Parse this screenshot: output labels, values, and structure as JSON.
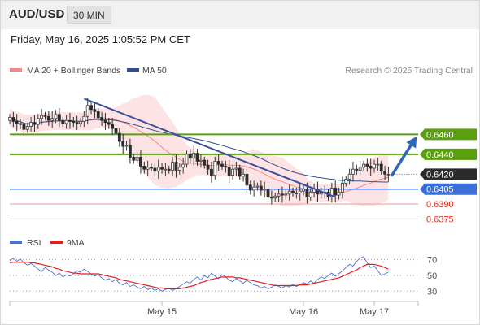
{
  "header": {
    "symbol": "AUD/USD",
    "timeframe": "30 MIN",
    "datetime": "Friday, May 16, 2025 1:05:52 PM CET"
  },
  "colors": {
    "bollinger": "#f08a8a",
    "bollinger_fill": "#fde3e3",
    "ma50": "#2f4f8f",
    "resistance": "#5aa00e",
    "pivot": "#3a6fd8",
    "support": "#f4a0a0",
    "support_text": "#e0301e",
    "trendline": "#3b4f9c",
    "arrow": "#2f64b8",
    "last_price": "#2b2b2b",
    "rsi": "#4a72d0",
    "rsi_ma": "#e0201c"
  },
  "chart_data": [
    {
      "type": "candlestick",
      "title": "AUD/USD",
      "legend": [
        {
          "name": "MA 20 + Bollinger Bands",
          "color": "#f08a8a"
        },
        {
          "name": "MA 50",
          "color": "#2f4f8f"
        }
      ],
      "source": "Research © 2025 Trading Central",
      "ylim": [
        0.6368,
        0.6515
      ],
      "x_ticks": [
        {
          "label": "May 15",
          "index": 43
        },
        {
          "label": "May 16",
          "index": 83
        },
        {
          "label": "May 17",
          "index": 103
        }
      ],
      "last_price": 0.642,
      "levels": [
        {
          "name": "resistance-2",
          "value": 0.646,
          "label": "0.6460",
          "kind": "resistance"
        },
        {
          "name": "resistance-1",
          "value": 0.644,
          "label": "0.6440",
          "kind": "resistance"
        },
        {
          "name": "pivot",
          "value": 0.6405,
          "label": "0.6405",
          "kind": "pivot"
        },
        {
          "name": "support-1",
          "value": 0.639,
          "label": "0.6390",
          "kind": "support"
        },
        {
          "name": "support-2",
          "value": 0.6375,
          "label": "0.6375",
          "kind": "support"
        }
      ],
      "trendline": {
        "from": {
          "index": 21,
          "value": 0.6496
        },
        "to": {
          "index": 92,
          "value": 0.6397
        }
      },
      "forecast_arrow": {
        "from": {
          "index": 108,
          "value": 0.6419
        },
        "to": {
          "index": 115,
          "value": 0.6458
        }
      },
      "close": [
        0.6477,
        0.6473,
        0.6471,
        0.647,
        0.6465,
        0.6468,
        0.6472,
        0.647,
        0.6476,
        0.6479,
        0.6478,
        0.6474,
        0.6476,
        0.648,
        0.6474,
        0.6471,
        0.6474,
        0.6473,
        0.6472,
        0.6471,
        0.6473,
        0.6478,
        0.6489,
        0.6485,
        0.6483,
        0.6477,
        0.6474,
        0.6472,
        0.647,
        0.6466,
        0.6461,
        0.6453,
        0.6448,
        0.6449,
        0.6437,
        0.6434,
        0.6437,
        0.6428,
        0.6425,
        0.6427,
        0.6426,
        0.6423,
        0.6427,
        0.6425,
        0.6425,
        0.6424,
        0.6432,
        0.6424,
        0.6427,
        0.643,
        0.644,
        0.6436,
        0.6441,
        0.6433,
        0.6434,
        0.6429,
        0.6425,
        0.6419,
        0.6433,
        0.643,
        0.6428,
        0.6427,
        0.6419,
        0.6425,
        0.6426,
        0.6418,
        0.642,
        0.6409,
        0.6404,
        0.6407,
        0.6408,
        0.6404,
        0.6405,
        0.6397,
        0.6396,
        0.6398,
        0.64,
        0.6399,
        0.64,
        0.6403,
        0.6401,
        0.6401,
        0.6403,
        0.6405,
        0.6397,
        0.6402,
        0.6405,
        0.64,
        0.6402,
        0.6402,
        0.6397,
        0.6406,
        0.6399,
        0.6402,
        0.6411,
        0.6415,
        0.642,
        0.6425,
        0.6424,
        0.6427,
        0.643,
        0.6428,
        0.6426,
        0.643,
        0.643,
        0.6423,
        0.642,
        0.642
      ]
    },
    {
      "type": "line",
      "title": "RSI",
      "legend": [
        {
          "name": "RSI",
          "color": "#4a72d0"
        },
        {
          "name": "9MA",
          "color": "#e0201c"
        }
      ],
      "ylim": [
        22,
        80
      ],
      "y_ticks": [
        70,
        50,
        30
      ],
      "series": [
        {
          "name": "RSI",
          "values": [
            69,
            72,
            68,
            71,
            66,
            63,
            65,
            62,
            58,
            55,
            60,
            57,
            54,
            50,
            53,
            48,
            51,
            49,
            52,
            56,
            54,
            58,
            55,
            52,
            49,
            51,
            47,
            44,
            46,
            42,
            45,
            40,
            38,
            41,
            36,
            38,
            35,
            33,
            36,
            32,
            34,
            31,
            33,
            30,
            32,
            34,
            31,
            33,
            36,
            39,
            42,
            40,
            45,
            48,
            44,
            50,
            47,
            53,
            49,
            46,
            51,
            48,
            44,
            42,
            46,
            43,
            40,
            44,
            41,
            38,
            37,
            34,
            36,
            33,
            35,
            38,
            36,
            34,
            37,
            35,
            39,
            36,
            38,
            41,
            39,
            43,
            40,
            45,
            48,
            46,
            50,
            53,
            49,
            52,
            56,
            60,
            64,
            62,
            68,
            72,
            74,
            66,
            60,
            62,
            56,
            50,
            52,
            54
          ]
        },
        {
          "name": "9MA",
          "values": [
            66,
            67,
            67,
            67,
            67,
            67,
            66,
            66,
            65,
            64,
            63,
            62,
            61,
            59,
            58,
            56,
            55,
            54,
            53,
            53,
            52,
            52,
            52,
            52,
            52,
            52,
            51,
            50,
            49,
            48,
            47,
            45,
            44,
            43,
            42,
            41,
            40,
            39,
            38,
            37,
            36,
            35,
            34,
            34,
            33,
            33,
            33,
            33,
            33,
            34,
            35,
            36,
            37,
            39,
            41,
            42,
            44,
            45,
            46,
            47,
            48,
            48,
            48,
            48,
            47,
            47,
            46,
            45,
            44,
            43,
            42,
            41,
            40,
            39,
            38,
            37,
            37,
            37,
            37,
            37,
            37,
            37,
            38,
            38,
            38,
            39,
            40,
            41,
            42,
            43,
            44,
            45,
            46,
            47,
            49,
            51,
            53,
            55,
            57,
            60,
            62,
            64,
            64,
            64,
            63,
            62,
            60,
            58
          ]
        }
      ]
    }
  ]
}
